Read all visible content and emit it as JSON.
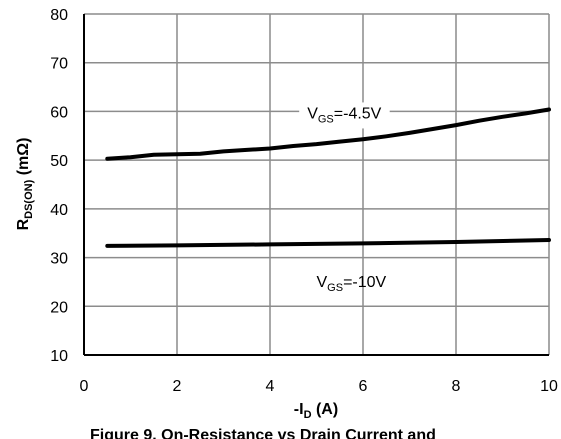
{
  "chart_data": {
    "type": "line",
    "xlabel": {
      "main": "-I",
      "sub": "D",
      "unit": " (A)"
    },
    "ylabel": {
      "main": "R",
      "sub": "DS(ON)",
      "unit": " (mΩ)"
    },
    "xlim": [
      0,
      10
    ],
    "ylim": [
      10,
      80
    ],
    "x_ticks": [
      0,
      2,
      4,
      6,
      8,
      10
    ],
    "y_ticks": [
      10,
      20,
      30,
      40,
      50,
      60,
      70,
      80
    ],
    "grid": true,
    "series": [
      {
        "name": "VGS=-4.5V",
        "x": [
          0.5,
          1.0,
          1.5,
          2.0,
          2.5,
          3.0,
          3.5,
          4.0,
          4.5,
          5.0,
          5.5,
          6.0,
          6.5,
          7.0,
          7.5,
          8.0,
          8.5,
          9.0,
          9.5,
          10.0
        ],
        "y": [
          50.3,
          50.6,
          51.1,
          51.2,
          51.3,
          51.8,
          52.1,
          52.4,
          52.9,
          53.3,
          53.8,
          54.3,
          54.9,
          55.6,
          56.4,
          57.2,
          58.1,
          58.9,
          59.6,
          60.4
        ],
        "color": "#000000"
      },
      {
        "name": "VGS=-10V",
        "x": [
          0.5,
          2.0,
          4.0,
          6.0,
          8.0,
          10.0
        ],
        "y": [
          32.4,
          32.5,
          32.7,
          32.9,
          33.2,
          33.6
        ],
        "color": "#000000"
      }
    ],
    "annotations": [
      {
        "main": "V",
        "sub": "GS",
        "rest": "=-4.5V",
        "series": 0
      },
      {
        "main": "V",
        "sub": "GS",
        "rest": "=-10V",
        "series": 1
      }
    ],
    "caption": "Figure 9. On-Resistance vs Drain Current and"
  }
}
